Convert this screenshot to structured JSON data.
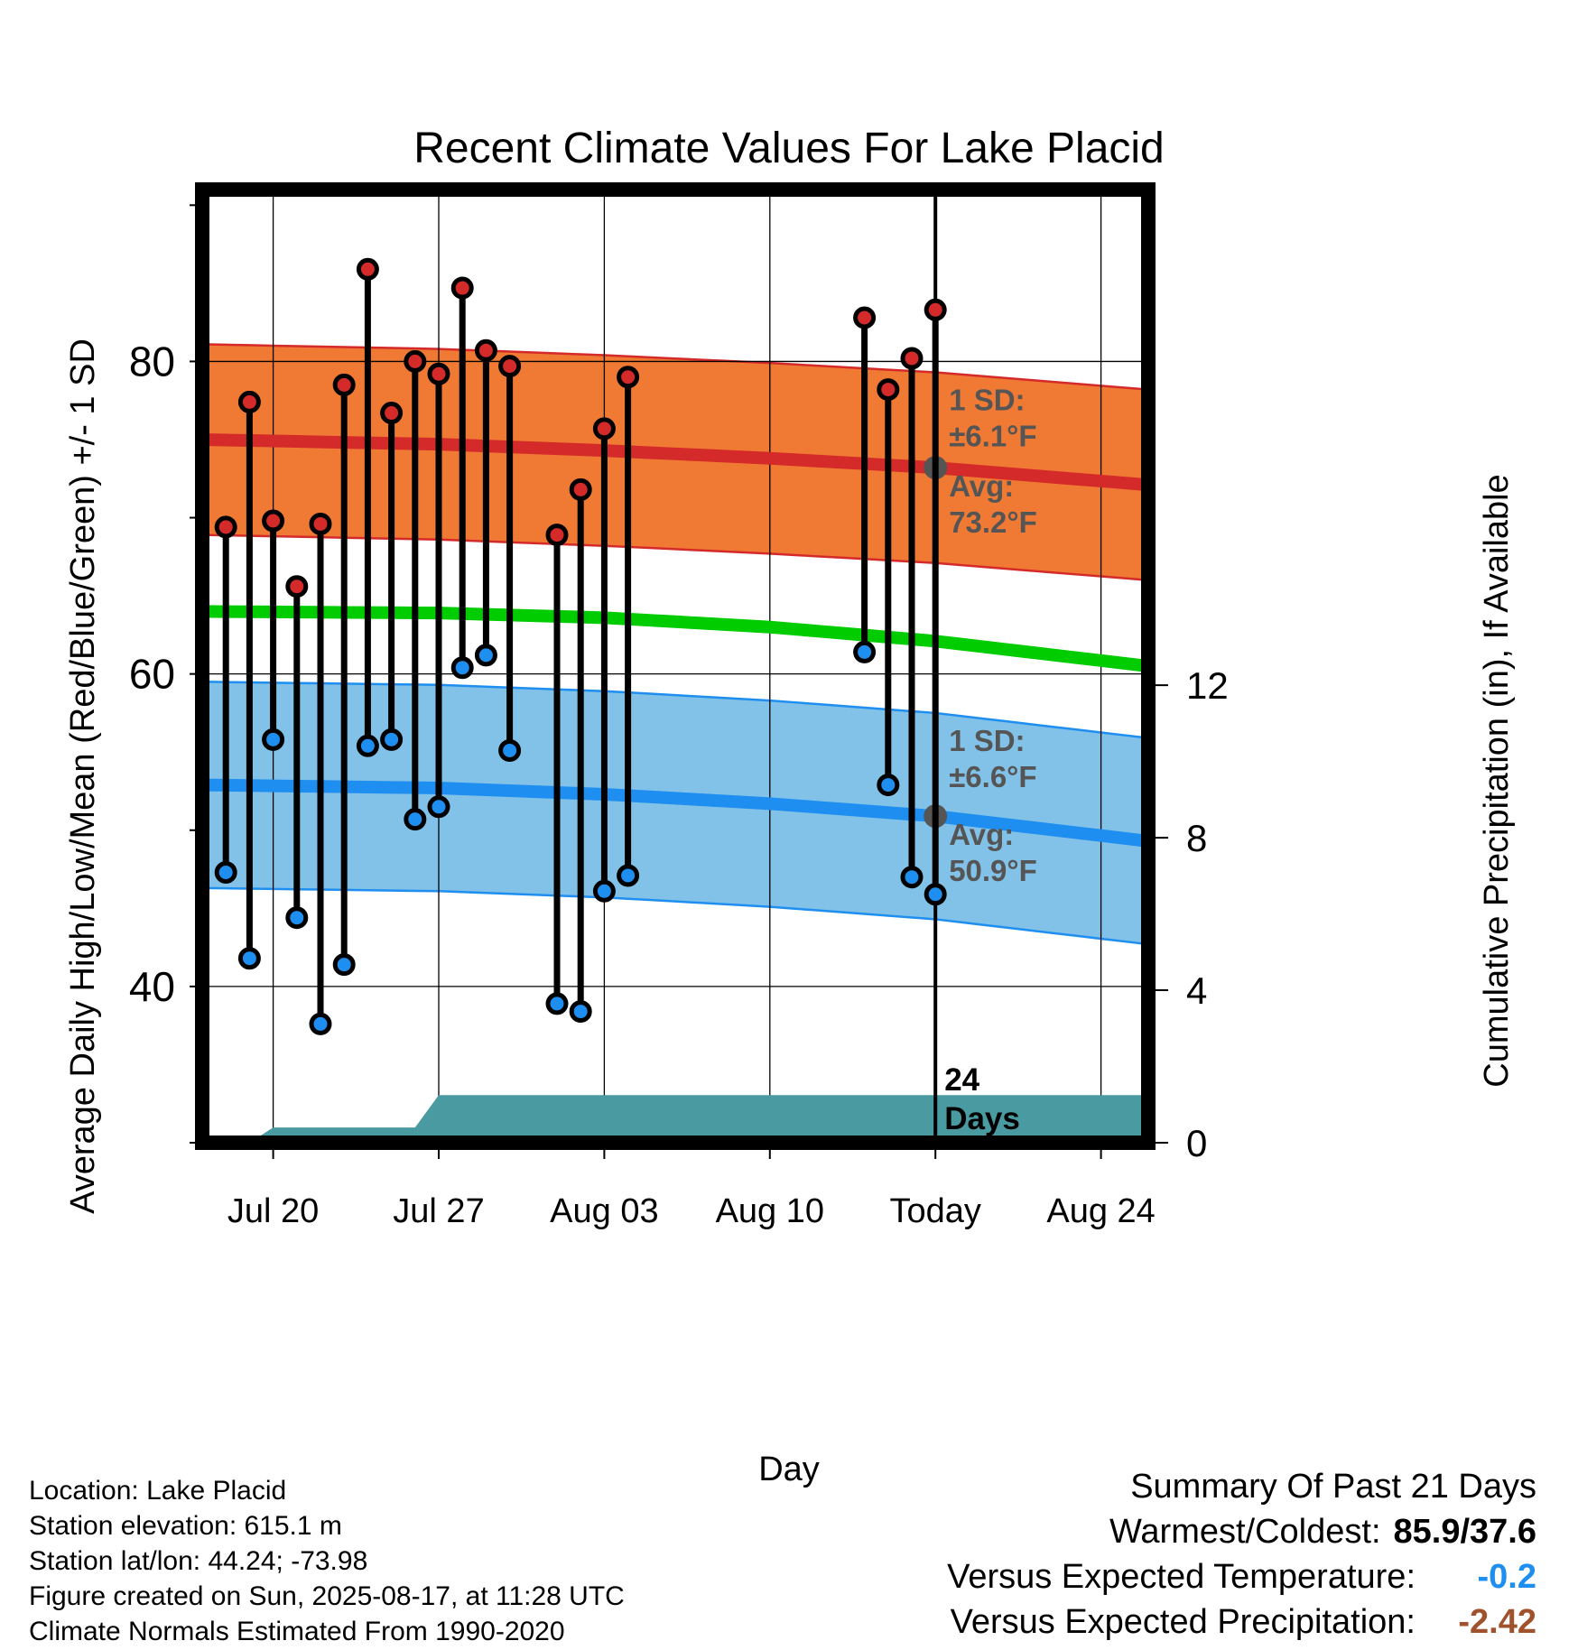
{
  "chart_data": {
    "type": "line",
    "title": "Recent Climate Values For Lake Placid",
    "xlabel": "Day",
    "ylabel": "Average Daily High/Low/Mean (Red/Blue/Green) +/- 1 SD",
    "y2label": "Cumulative Precipitation (in), If Available",
    "xlim": [
      "2025-07-17",
      "2025-08-26"
    ],
    "ylim": [
      30,
      91
    ],
    "y2lim": [
      0,
      25
    ],
    "x_ticks": [
      "2025-07-20",
      "2025-07-27",
      "2025-08-03",
      "2025-08-10",
      "2025-08-17",
      "2025-08-24"
    ],
    "x_tick_labels": [
      "Jul 20",
      "Jul 27",
      "Aug 03",
      "Aug 10",
      "Today",
      "Aug 24"
    ],
    "y_ticks": [
      40,
      60,
      80
    ],
    "y2_ticks": [
      0,
      4,
      8,
      12
    ],
    "grid": true,
    "today": "2025-08-17",
    "days_label": "24\nDays",
    "normal_high": {
      "x": [
        "2025-07-17",
        "2025-07-27",
        "2025-08-03",
        "2025-08-10",
        "2025-08-17",
        "2025-08-26"
      ],
      "mean": [
        75.0,
        74.7,
        74.3,
        73.8,
        73.2,
        72.1
      ],
      "sd": 6.1,
      "avg_label": "Avg:\n73.2°F",
      "sd_label": "1 SD:\n±6.1°F",
      "color": "#d42a2a",
      "band_color": "#f07a33"
    },
    "normal_mean": {
      "x": [
        "2025-07-17",
        "2025-07-27",
        "2025-08-03",
        "2025-08-10",
        "2025-08-17",
        "2025-08-26"
      ],
      "values": [
        64.0,
        63.9,
        63.6,
        63.0,
        62.1,
        60.5
      ],
      "color": "#00cc00"
    },
    "normal_low": {
      "x": [
        "2025-07-17",
        "2025-07-27",
        "2025-08-03",
        "2025-08-10",
        "2025-08-17",
        "2025-08-26"
      ],
      "mean": [
        52.9,
        52.7,
        52.3,
        51.7,
        50.9,
        49.3
      ],
      "sd": 6.6,
      "avg_label": "Avg:\n50.9°F",
      "sd_label": "1 SD:\n±6.6°F",
      "color": "#1e8ff0",
      "band_color": "#83c2e8"
    },
    "daily_obs": [
      {
        "date": "2025-07-18",
        "high": 69.4,
        "low": 47.3
      },
      {
        "date": "2025-07-19",
        "high": 77.4,
        "low": 41.8
      },
      {
        "date": "2025-07-20",
        "high": 69.8,
        "low": 55.8
      },
      {
        "date": "2025-07-21",
        "high": 65.6,
        "low": 44.4
      },
      {
        "date": "2025-07-22",
        "high": 69.6,
        "low": 37.6
      },
      {
        "date": "2025-07-23",
        "high": 78.5,
        "low": 41.4
      },
      {
        "date": "2025-07-24",
        "high": 85.9,
        "low": 55.4
      },
      {
        "date": "2025-07-25",
        "high": 76.7,
        "low": 55.8
      },
      {
        "date": "2025-07-26",
        "high": 80.0,
        "low": 50.7
      },
      {
        "date": "2025-07-27",
        "high": 79.2,
        "low": 51.5
      },
      {
        "date": "2025-07-28",
        "high": 84.7,
        "low": 60.4
      },
      {
        "date": "2025-07-29",
        "high": 80.7,
        "low": 61.2
      },
      {
        "date": "2025-07-30",
        "high": 79.7,
        "low": 55.1
      },
      {
        "date": "2025-08-01",
        "high": 68.9,
        "low": 38.9
      },
      {
        "date": "2025-08-02",
        "high": 71.8,
        "low": 38.4
      },
      {
        "date": "2025-08-03",
        "high": 75.7,
        "low": 46.1
      },
      {
        "date": "2025-08-04",
        "high": 79.0,
        "low": 47.1
      },
      {
        "date": "2025-08-14",
        "high": 82.8,
        "low": 61.4
      },
      {
        "date": "2025-08-15",
        "high": 78.2,
        "low": 52.9
      },
      {
        "date": "2025-08-16",
        "high": 80.2,
        "low": 47.0
      },
      {
        "date": "2025-08-17",
        "high": 83.3,
        "low": 45.9
      }
    ],
    "precip_cumulative": {
      "x": [
        "2025-07-18",
        "2025-07-19",
        "2025-07-20",
        "2025-07-26",
        "2025-07-27",
        "2025-08-17",
        "2025-08-26"
      ],
      "values": [
        0,
        0,
        0.4,
        0.4,
        1.25,
        1.25,
        1.25
      ],
      "color": "#4a9aa2"
    }
  },
  "footer": {
    "location": "Location: Lake Placid",
    "elevation": "Station elevation: 615.1 m",
    "latlon": "Station lat/lon: 44.24; -73.98",
    "created": "Figure created on Sun, 2025-08-17, at 11:28 UTC",
    "normals": "Climate Normals Estimated From 1990-2020"
  },
  "summary": {
    "title": "Summary Of Past 21 Days",
    "warm_cold_label": "Warmest/Coldest:",
    "warm_cold_value": "85.9/37.6",
    "temp_label": "Versus Expected Temperature:",
    "temp_value": "-0.2",
    "temp_color": "#1e8ff0",
    "precip_label": "Versus Expected Precipitation:",
    "precip_value": "-2.42",
    "precip_color": "#a0522d"
  }
}
